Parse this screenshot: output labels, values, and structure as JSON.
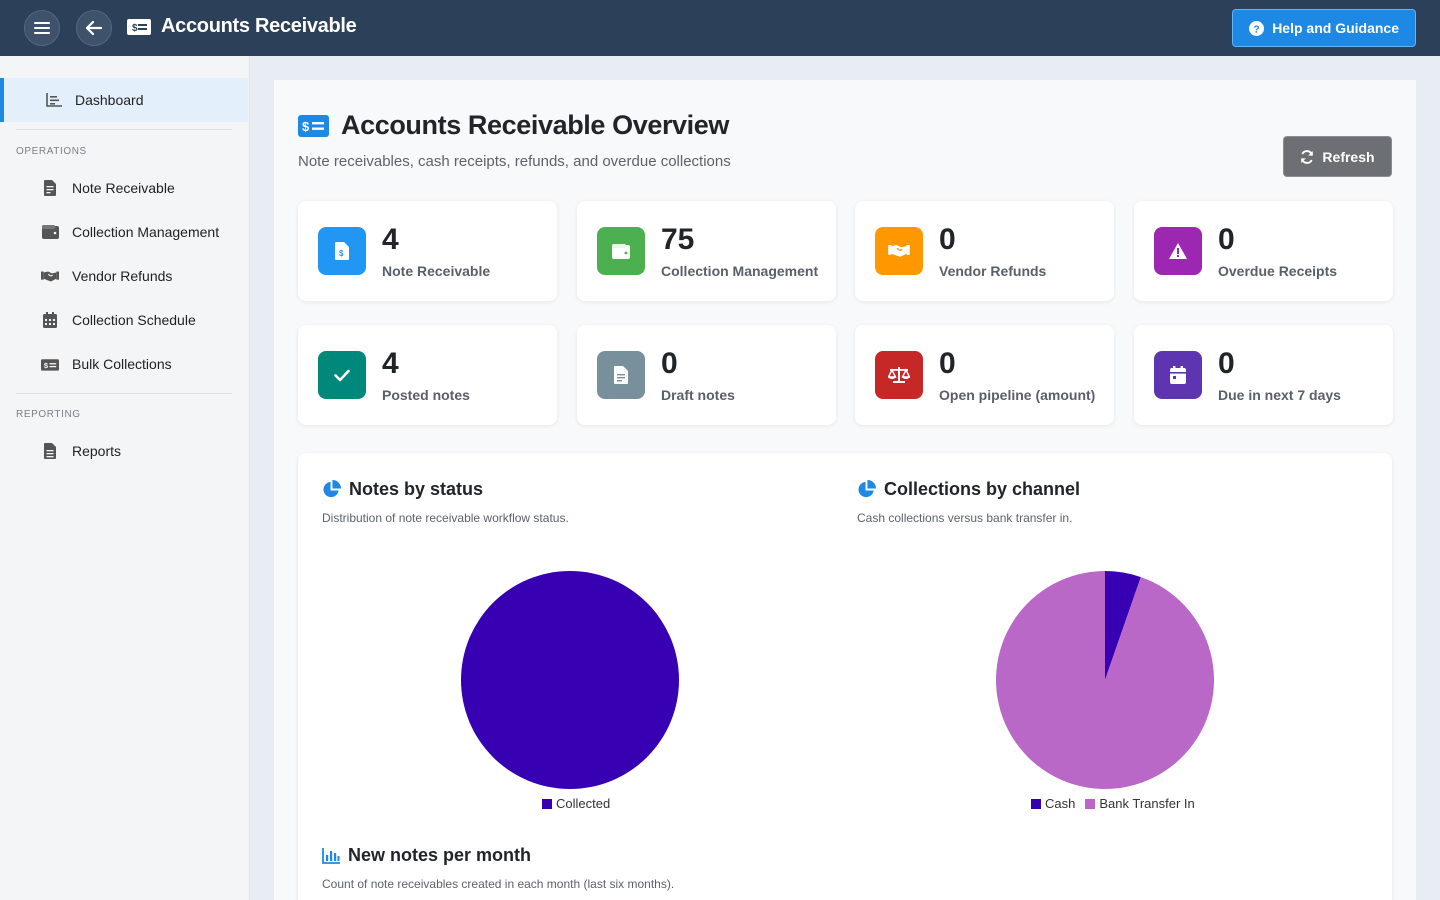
{
  "header": {
    "title": "Accounts Receivable",
    "help_label": "Help and Guidance",
    "menu_icon": "hamburger-icon",
    "back_icon": "arrow-left-icon",
    "app_icon": "money-bill-icon",
    "help_icon": "question-circle-icon"
  },
  "sidebar": {
    "dashboard": {
      "label": "Dashboard",
      "icon": "chart-bar-icon"
    },
    "sections": [
      {
        "title": "OPERATIONS"
      },
      {
        "title": "REPORTING"
      }
    ],
    "items": [
      {
        "label": "Note Receivable",
        "icon": "file-invoice-icon"
      },
      {
        "label": "Collection Management",
        "icon": "wallet-icon"
      },
      {
        "label": "Vendor Refunds",
        "icon": "handshake-icon"
      },
      {
        "label": "Collection Schedule",
        "icon": "calendar-icon"
      },
      {
        "label": "Bulk Collections",
        "icon": "money-bills-icon"
      },
      {
        "label": "Reports",
        "icon": "file-alt-icon"
      }
    ]
  },
  "main": {
    "title": "Accounts Receivable Overview",
    "subtitle": "Note receivables, cash receipts, refunds, and overdue collections",
    "refresh_label": "Refresh",
    "cards": [
      {
        "value": "4",
        "label": "Note Receivable",
        "color": "#2196f3",
        "icon": "file-invoice-dollar-icon"
      },
      {
        "value": "75",
        "label": "Collection Management",
        "color": "#4caf50",
        "icon": "wallet-icon"
      },
      {
        "value": "0",
        "label": "Vendor Refunds",
        "color": "#ff9800",
        "icon": "handshake-icon"
      },
      {
        "value": "0",
        "label": "Overdue Receipts",
        "color": "#9c27b0",
        "icon": "warning-icon"
      },
      {
        "value": "4",
        "label": "Posted notes",
        "color": "#00897b",
        "icon": "check-icon"
      },
      {
        "value": "0",
        "label": "Draft notes",
        "color": "#78909c",
        "icon": "file-icon"
      },
      {
        "value": "0",
        "label": "Open pipeline (amount)",
        "color": "#c62828",
        "icon": "balance-scale-icon"
      },
      {
        "value": "0",
        "label": "Due in next 7 days",
        "color": "#5e35b1",
        "icon": "calendar-icon"
      }
    ]
  },
  "charts": {
    "status": {
      "title": "Notes by status",
      "desc": "Distribution of note receivable workflow status.",
      "icon": "pie-chart-icon"
    },
    "channel": {
      "title": "Collections by channel",
      "desc": "Cash collections versus bank transfer in.",
      "icon": "pie-chart-icon"
    },
    "monthly": {
      "title": "New notes per month",
      "desc": "Count of note receivables created in each month (last six months).",
      "icon": "bar-chart-icon"
    }
  },
  "chart_data": [
    {
      "type": "pie",
      "title": "Notes by status",
      "categories": [
        "Collected"
      ],
      "values": [
        4
      ],
      "colors": [
        "#3700b3"
      ]
    },
    {
      "type": "pie",
      "title": "Collections by channel",
      "categories": [
        "Cash",
        "Bank Transfer In"
      ],
      "values": [
        4,
        71
      ],
      "colors": [
        "#3700b3",
        "#ba68c8"
      ]
    }
  ]
}
